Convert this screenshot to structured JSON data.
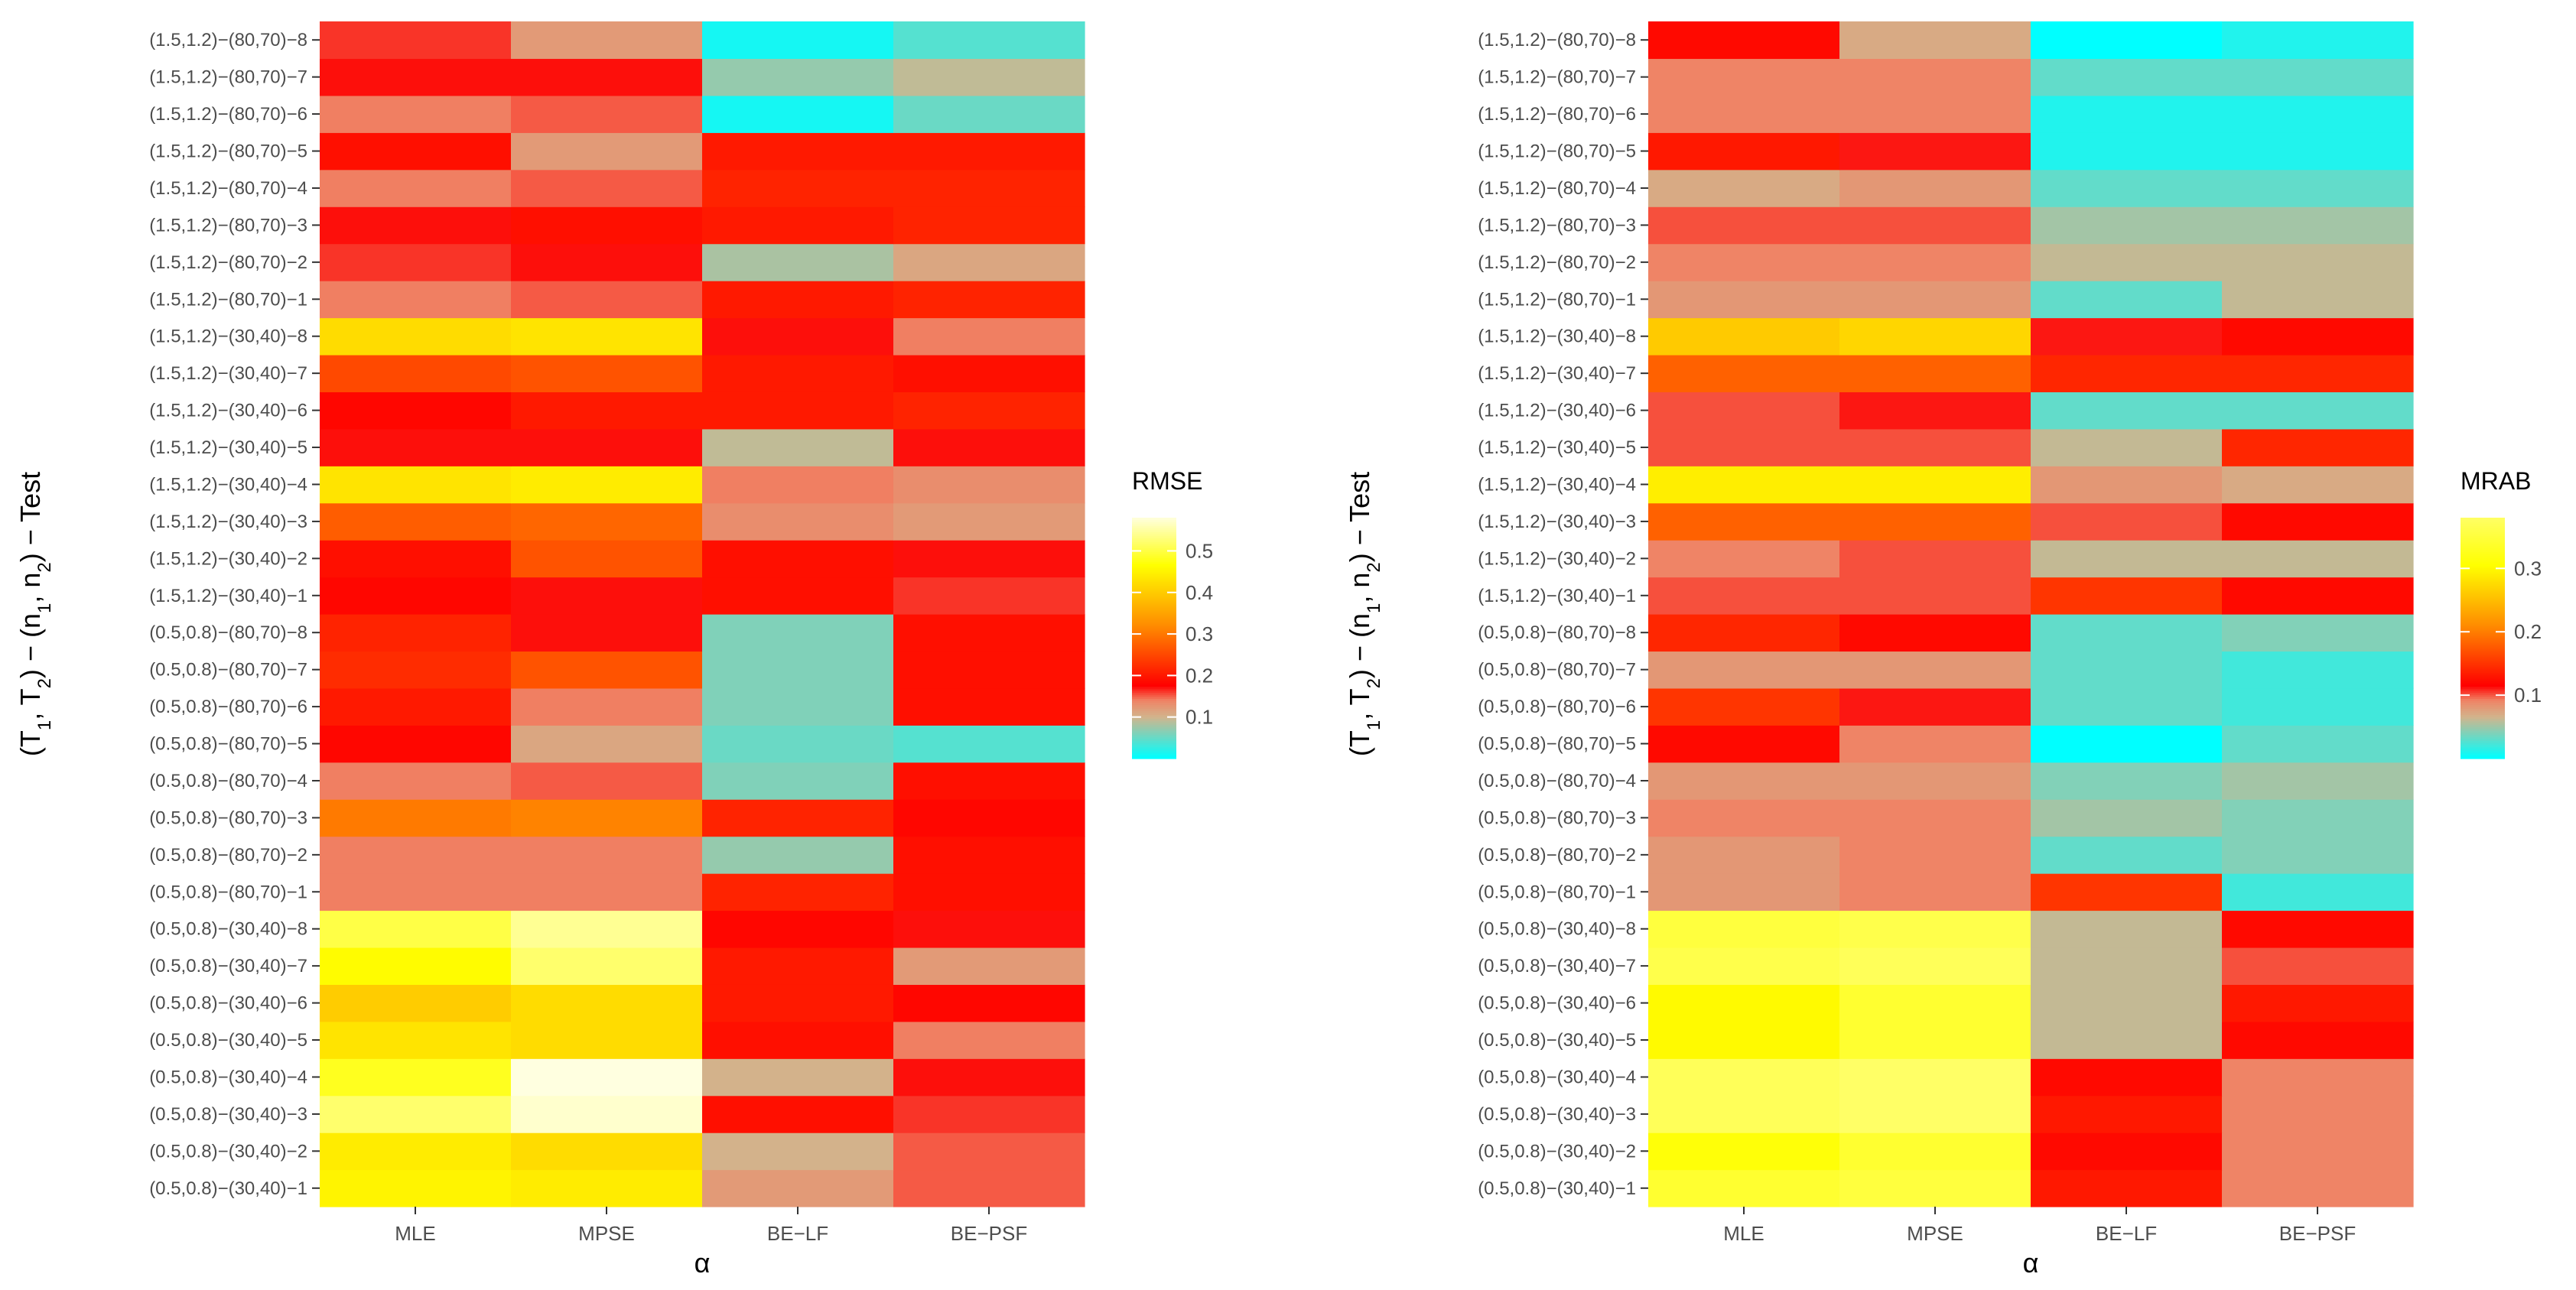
{
  "chart_data": [
    {
      "type": "heatmap",
      "fill_label": "RMSE",
      "xlabel": "α",
      "ylabel_parts": [
        "(T",
        "1",
        ", T",
        "2",
        ") − (n",
        "1",
        ", n",
        "2",
        ") − Test"
      ],
      "x_categories": [
        "MLE",
        "MPSE",
        "BE−LF",
        "BE−PSF"
      ],
      "y_categories": [
        "(0.5,0.8)−(30,40)−1",
        "(0.5,0.8)−(30,40)−2",
        "(0.5,0.8)−(30,40)−3",
        "(0.5,0.8)−(30,40)−4",
        "(0.5,0.8)−(30,40)−5",
        "(0.5,0.8)−(30,40)−6",
        "(0.5,0.8)−(30,40)−7",
        "(0.5,0.8)−(30,40)−8",
        "(0.5,0.8)−(80,70)−1",
        "(0.5,0.8)−(80,70)−2",
        "(0.5,0.8)−(80,70)−3",
        "(0.5,0.8)−(80,70)−4",
        "(0.5,0.8)−(80,70)−5",
        "(0.5,0.8)−(80,70)−6",
        "(0.5,0.8)−(80,70)−7",
        "(0.5,0.8)−(80,70)−8",
        "(1.5,1.2)−(30,40)−1",
        "(1.5,1.2)−(30,40)−2",
        "(1.5,1.2)−(30,40)−3",
        "(1.5,1.2)−(30,40)−4",
        "(1.5,1.2)−(30,40)−5",
        "(1.5,1.2)−(30,40)−6",
        "(1.5,1.2)−(30,40)−7",
        "(1.5,1.2)−(30,40)−8",
        "(1.5,1.2)−(80,70)−1",
        "(1.5,1.2)−(80,70)−2",
        "(1.5,1.2)−(80,70)−3",
        "(1.5,1.2)−(80,70)−4",
        "(1.5,1.2)−(80,70)−5",
        "(1.5,1.2)−(80,70)−6",
        "(1.5,1.2)−(80,70)−7",
        "(1.5,1.2)−(80,70)−8"
      ],
      "values": [
        [
          0.45,
          0.44,
          0.12,
          0.15
        ],
        [
          0.44,
          0.42,
          0.1,
          0.15
        ],
        [
          0.52,
          0.57,
          0.19,
          0.16
        ],
        [
          0.48,
          0.58,
          0.1,
          0.17
        ],
        [
          0.43,
          0.42,
          0.19,
          0.14
        ],
        [
          0.4,
          0.42,
          0.2,
          0.18
        ],
        [
          0.46,
          0.52,
          0.2,
          0.12
        ],
        [
          0.5,
          0.54,
          0.18,
          0.17
        ],
        [
          0.14,
          0.14,
          0.21,
          0.19
        ],
        [
          0.14,
          0.14,
          0.07,
          0.19
        ],
        [
          0.3,
          0.31,
          0.21,
          0.18
        ],
        [
          0.14,
          0.15,
          0.06,
          0.19
        ],
        [
          0.18,
          0.11,
          0.05,
          0.04
        ],
        [
          0.2,
          0.14,
          0.06,
          0.19
        ],
        [
          0.22,
          0.26,
          0.06,
          0.19
        ],
        [
          0.21,
          0.17,
          0.06,
          0.19
        ],
        [
          0.18,
          0.17,
          0.19,
          0.16
        ],
        [
          0.19,
          0.26,
          0.19,
          0.17
        ],
        [
          0.27,
          0.28,
          0.13,
          0.12
        ],
        [
          0.43,
          0.44,
          0.14,
          0.13
        ],
        [
          0.17,
          0.17,
          0.09,
          0.17
        ],
        [
          0.18,
          0.2,
          0.2,
          0.21
        ],
        [
          0.25,
          0.26,
          0.2,
          0.19
        ],
        [
          0.42,
          0.43,
          0.17,
          0.14
        ],
        [
          0.14,
          0.15,
          0.2,
          0.21
        ],
        [
          0.16,
          0.17,
          0.08,
          0.11
        ],
        [
          0.17,
          0.19,
          0.2,
          0.21
        ],
        [
          0.14,
          0.15,
          0.21,
          0.21
        ],
        [
          0.19,
          0.12,
          0.2,
          0.2
        ],
        [
          0.14,
          0.15,
          0.01,
          0.05
        ],
        [
          0.17,
          0.17,
          0.07,
          0.09
        ],
        [
          0.16,
          0.12,
          0.01,
          0.04
        ]
      ],
      "legend_ticks": [
        0.1,
        0.2,
        0.3,
        0.4,
        0.5
      ],
      "color_range": [
        0.0,
        0.58
      ],
      "colors": {
        "low": "#00ffff",
        "mid": "#ff0000",
        "high": "#ffffe0",
        "tan": "#d2b48c",
        "yellow": "#ffff00"
      }
    },
    {
      "type": "heatmap",
      "fill_label": "MRAB",
      "xlabel": "α",
      "ylabel_parts": [
        "(T",
        "1",
        ", T",
        "2",
        ") − (n",
        "1",
        ", n",
        "2",
        ") − Test"
      ],
      "x_categories": [
        "MLE",
        "MPSE",
        "BE−LF",
        "BE−PSF"
      ],
      "y_categories": [
        "(0.5,0.8)−(30,40)−1",
        "(0.5,0.8)−(30,40)−2",
        "(0.5,0.8)−(30,40)−3",
        "(0.5,0.8)−(30,40)−4",
        "(0.5,0.8)−(30,40)−5",
        "(0.5,0.8)−(30,40)−6",
        "(0.5,0.8)−(30,40)−7",
        "(0.5,0.8)−(30,40)−8",
        "(0.5,0.8)−(80,70)−1",
        "(0.5,0.8)−(80,70)−2",
        "(0.5,0.8)−(80,70)−3",
        "(0.5,0.8)−(80,70)−4",
        "(0.5,0.8)−(80,70)−5",
        "(0.5,0.8)−(80,70)−6",
        "(0.5,0.8)−(80,70)−7",
        "(0.5,0.8)−(80,70)−8",
        "(1.5,1.2)−(30,40)−1",
        "(1.5,1.2)−(30,40)−2",
        "(1.5,1.2)−(30,40)−3",
        "(1.5,1.2)−(30,40)−4",
        "(1.5,1.2)−(30,40)−5",
        "(1.5,1.2)−(30,40)−6",
        "(1.5,1.2)−(30,40)−7",
        "(1.5,1.2)−(30,40)−8",
        "(1.5,1.2)−(80,70)−1",
        "(1.5,1.2)−(80,70)−2",
        "(1.5,1.2)−(80,70)−3",
        "(1.5,1.2)−(80,70)−4",
        "(1.5,1.2)−(80,70)−5",
        "(1.5,1.2)−(80,70)−6",
        "(1.5,1.2)−(80,70)−7",
        "(1.5,1.2)−(80,70)−8"
      ],
      "values": [
        [
          0.34,
          0.35,
          0.13,
          0.09
        ],
        [
          0.31,
          0.34,
          0.12,
          0.09
        ],
        [
          0.37,
          0.38,
          0.13,
          0.09
        ],
        [
          0.37,
          0.38,
          0.12,
          0.09
        ],
        [
          0.3,
          0.34,
          0.06,
          0.12
        ],
        [
          0.3,
          0.34,
          0.06,
          0.13
        ],
        [
          0.36,
          0.37,
          0.06,
          0.1
        ],
        [
          0.35,
          0.36,
          0.06,
          0.12
        ],
        [
          0.08,
          0.09,
          0.15,
          0.02
        ],
        [
          0.08,
          0.09,
          0.03,
          0.04
        ],
        [
          0.09,
          0.09,
          0.05,
          0.04
        ],
        [
          0.08,
          0.08,
          0.04,
          0.05
        ],
        [
          0.12,
          0.09,
          0.0,
          0.03
        ],
        [
          0.15,
          0.11,
          0.03,
          0.02
        ],
        [
          0.08,
          0.08,
          0.03,
          0.02
        ],
        [
          0.14,
          0.12,
          0.03,
          0.04
        ],
        [
          0.1,
          0.1,
          0.15,
          0.12
        ],
        [
          0.09,
          0.1,
          0.06,
          0.06
        ],
        [
          0.18,
          0.18,
          0.1,
          0.12
        ],
        [
          0.29,
          0.29,
          0.08,
          0.07
        ],
        [
          0.1,
          0.1,
          0.06,
          0.14
        ],
        [
          0.1,
          0.11,
          0.03,
          0.03
        ],
        [
          0.18,
          0.18,
          0.14,
          0.14
        ],
        [
          0.26,
          0.27,
          0.11,
          0.12
        ],
        [
          0.08,
          0.08,
          0.03,
          0.06
        ],
        [
          0.09,
          0.09,
          0.06,
          0.06
        ],
        [
          0.1,
          0.1,
          0.05,
          0.05
        ],
        [
          0.07,
          0.08,
          0.03,
          0.03
        ],
        [
          0.13,
          0.11,
          0.01,
          0.01
        ],
        [
          0.09,
          0.09,
          0.01,
          0.01
        ],
        [
          0.09,
          0.09,
          0.03,
          0.03
        ],
        [
          0.12,
          0.07,
          0.0,
          0.01
        ]
      ],
      "legend_ticks": [
        0.1,
        0.2,
        0.3
      ],
      "color_range": [
        0.0,
        0.38
      ],
      "colors": {
        "low": "#00ffff",
        "mid": "#ff0000",
        "high": "#ffff66",
        "tan": "#d2b48c",
        "yellow": "#ffff00"
      }
    }
  ]
}
